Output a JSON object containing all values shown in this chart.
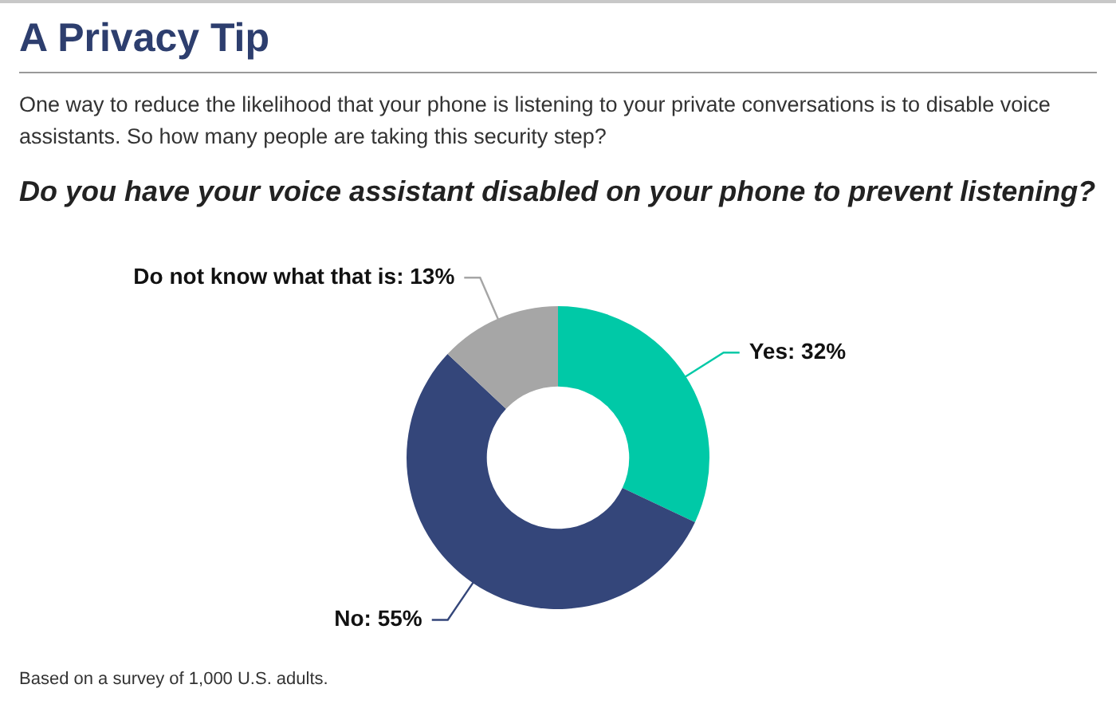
{
  "chart_data": {
    "type": "donut",
    "title": "A Privacy Tip",
    "subtitle": "One way to reduce the likelihood that your phone is listening to your private conversations is to disable voice assistants. So how many people are taking this security step?",
    "xlabel": "Do you have your voice assistant disabled on your phone to prevent listening?",
    "categories": [
      "Yes",
      "No",
      "Do not know what that is"
    ],
    "values": [
      32,
      55,
      13
    ],
    "colors": [
      "#00c9a7",
      "#34467a",
      "#a6a6a6"
    ],
    "value_labels": [
      "32%",
      "55%",
      "13%"
    ],
    "annotations": [
      "Based on a survey of 1,000 U.S. adults."
    ],
    "legend": false
  }
}
